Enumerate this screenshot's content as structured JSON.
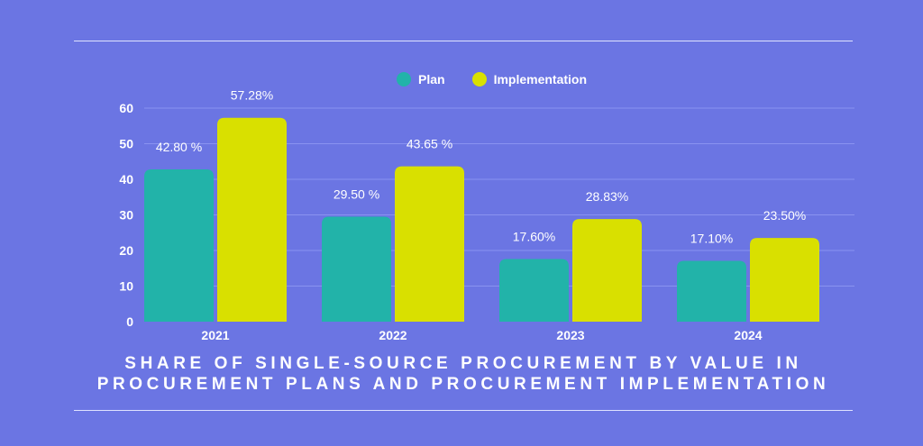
{
  "colors": {
    "background": "#6b75e3",
    "plan": "#22b3a9",
    "implementation": "#d9e000",
    "gridline": "#8a93f0",
    "text": "#ffffff"
  },
  "legend": {
    "plan_label": "Plan",
    "implementation_label": "Implementation"
  },
  "caption": {
    "line1": "SHARE OF SINGLE-SOURCE PROCUREMENT BY VALUE IN",
    "line2": "PROCUREMENT PLANS AND PROCUREMENT IMPLEMENTATION"
  },
  "chart_data": {
    "type": "bar",
    "title": "SHARE OF SINGLE-SOURCE PROCUREMENT BY VALUE IN PROCUREMENT PLANS AND PROCUREMENT IMPLEMENTATION",
    "categories": [
      "2021",
      "2022",
      "2023",
      "2024"
    ],
    "series": [
      {
        "name": "Plan",
        "values": [
          42.8,
          29.5,
          17.6,
          17.1
        ],
        "labels": [
          "42.80 %",
          "29.50 %",
          "17.60%",
          "17.10%"
        ]
      },
      {
        "name": "Implementation",
        "values": [
          57.28,
          43.65,
          28.83,
          23.5
        ],
        "labels": [
          "57.28%",
          "43.65 %",
          "28.83%",
          "23.50%"
        ]
      }
    ],
    "yticks": [
      "0",
      "10",
      "20",
      "30",
      "40",
      "50",
      "60"
    ],
    "ylim": [
      0,
      60
    ],
    "xlabel": "",
    "ylabel": "",
    "grid": true,
    "legend_position": "top-center"
  }
}
